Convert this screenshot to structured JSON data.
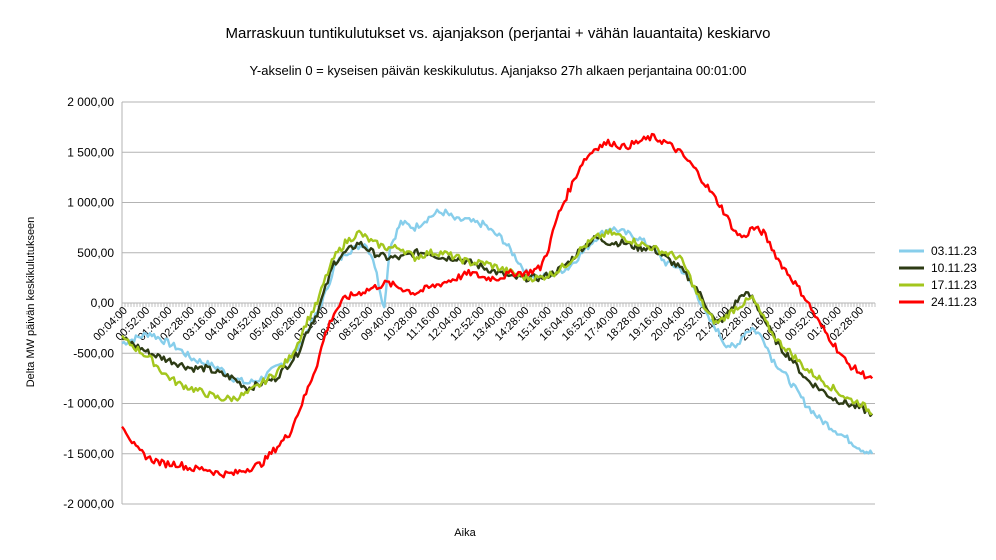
{
  "chart_data": {
    "type": "line",
    "title": "Marraskuun tuntikulutukset vs. ajanjakson (perjantai + vähän lauantaita) keskiarvo",
    "subtitle": "Y-akselin 0 = kyseisen päivän keskikulutus. Ajanjakso 27h alkaen perjantaina 00:01:00",
    "xlabel": "Aika",
    "ylabel": "Delta MW päivän keskikulutukseen",
    "ylim": [
      -2000,
      2000
    ],
    "yticks": [
      2000,
      1500,
      1000,
      500,
      0,
      -500,
      -1000,
      -1500,
      -2000
    ],
    "ytick_labels": [
      "2 000,00",
      "1 500,00",
      "1 000,00",
      "500,00",
      "0,00",
      "-500,00",
      "-1 000,00",
      "-1 500,00",
      "-2 000,00"
    ],
    "x_hours_range": [
      0,
      27
    ],
    "xtick_labels": [
      "00:04:00",
      "00:52:00",
      "01:40:00",
      "02:28:00",
      "03:16:00",
      "04:04:00",
      "04:52:00",
      "05:40:00",
      "06:28:00",
      "07:16:00",
      "08:04:00",
      "08:52:00",
      "09:40:00",
      "10:28:00",
      "11:16:00",
      "12:04:00",
      "12:52:00",
      "13:40:00",
      "14:28:00",
      "15:16:00",
      "16:04:00",
      "16:52:00",
      "17:40:00",
      "18:28:00",
      "19:16:00",
      "20:04:00",
      "20:52:00",
      "21:40:00",
      "22:28:00",
      "23:16:00",
      "00:04:00",
      "00:52:00",
      "01:40:00",
      "02:28:00"
    ],
    "grid": "horizontal",
    "legend_position": "right",
    "series": [
      {
        "name": "03.11.23",
        "color": "#87ceeb",
        "x": [
          0,
          1,
          2,
          2.5,
          3,
          3.5,
          4,
          4.5,
          5,
          5.5,
          6,
          6.3,
          6.6,
          7,
          7.3,
          7.6,
          8,
          8.4,
          8.7,
          9,
          9.2,
          9.4,
          9.6,
          10,
          10.5,
          11,
          11.3,
          11.6,
          12,
          12.3,
          12.6,
          13,
          13.3,
          13.6,
          14,
          14.5,
          15,
          15.5,
          16,
          16.5,
          17,
          17.5,
          18,
          18.5,
          19,
          19.5,
          20,
          20.3,
          20.6,
          21,
          21.3,
          21.6,
          22,
          22.3,
          22.6,
          23,
          23.3,
          23.6,
          24,
          24.5,
          25,
          25.5,
          26,
          26.5,
          26.9
        ],
        "y": [
          -400,
          -300,
          -450,
          -550,
          -600,
          -650,
          -750,
          -800,
          -750,
          -650,
          -550,
          -450,
          -300,
          -100,
          100,
          350,
          500,
          550,
          600,
          450,
          200,
          -50,
          550,
          800,
          750,
          850,
          900,
          900,
          820,
          830,
          800,
          780,
          700,
          650,
          500,
          300,
          250,
          300,
          350,
          500,
          650,
          750,
          700,
          650,
          550,
          400,
          350,
          250,
          100,
          -150,
          -250,
          -400,
          -450,
          -300,
          -250,
          -350,
          -550,
          -650,
          -800,
          -1000,
          -1150,
          -1250,
          -1350,
          -1450,
          -1500
        ]
      },
      {
        "name": "10.11.23",
        "color": "#2d3b14",
        "x": [
          0,
          1,
          2,
          2.5,
          3,
          3.5,
          4,
          4.5,
          5,
          5.5,
          6,
          6.3,
          6.6,
          7,
          7.3,
          7.6,
          8,
          8.5,
          9,
          9.5,
          10,
          10.5,
          11,
          11.5,
          12,
          12.5,
          13,
          13.5,
          14,
          14.5,
          15,
          15.5,
          16,
          16.5,
          17,
          17.5,
          18,
          18.5,
          19,
          19.5,
          20,
          20.3,
          20.6,
          21,
          21.3,
          21.6,
          22,
          22.3,
          22.6,
          23,
          23.3,
          23.6,
          24,
          24.5,
          25,
          25.5,
          26,
          26.5,
          26.9
        ],
        "y": [
          -350,
          -500,
          -600,
          -650,
          -650,
          -700,
          -750,
          -850,
          -800,
          -750,
          -600,
          -500,
          -300,
          -100,
          150,
          400,
          500,
          600,
          500,
          450,
          450,
          500,
          500,
          450,
          450,
          400,
          350,
          300,
          250,
          250,
          250,
          300,
          400,
          550,
          650,
          600,
          600,
          550,
          550,
          450,
          350,
          250,
          150,
          -50,
          -200,
          -150,
          0,
          100,
          50,
          -150,
          -300,
          -450,
          -550,
          -750,
          -850,
          -950,
          -1000,
          -1050,
          -1100
        ]
      },
      {
        "name": "17.11.23",
        "color": "#a3c61d",
        "x": [
          0,
          1,
          1.5,
          2,
          2.5,
          3,
          3.5,
          4,
          4.5,
          5,
          5.5,
          6,
          6.3,
          6.6,
          7,
          7.3,
          7.6,
          8,
          8.5,
          9,
          9.5,
          10,
          10.5,
          11,
          11.5,
          12,
          12.5,
          13,
          13.5,
          14,
          14.5,
          15,
          15.5,
          16,
          16.5,
          17,
          17.5,
          18,
          18.5,
          19,
          19.5,
          20,
          20.3,
          20.6,
          21,
          21.3,
          21.6,
          22,
          22.3,
          22.6,
          23,
          23.3,
          23.6,
          24,
          24.5,
          25,
          25.5,
          26,
          26.5,
          26.9
        ],
        "y": [
          -350,
          -550,
          -700,
          -800,
          -850,
          -900,
          -950,
          -950,
          -900,
          -800,
          -700,
          -550,
          -400,
          -200,
          0,
          250,
          450,
          600,
          700,
          600,
          550,
          550,
          450,
          500,
          500,
          450,
          400,
          400,
          350,
          300,
          250,
          250,
          300,
          400,
          550,
          650,
          700,
          650,
          600,
          550,
          500,
          450,
          300,
          100,
          -100,
          -200,
          -150,
          -50,
          0,
          50,
          -150,
          -300,
          -400,
          -500,
          -650,
          -750,
          -850,
          -950,
          -1000,
          -1100
        ]
      },
      {
        "name": "24.11.23",
        "color": "#ff0000",
        "x": [
          0,
          0.5,
          1,
          1.5,
          2,
          2.5,
          3,
          3.5,
          4,
          4.5,
          5,
          5.5,
          6,
          6.3,
          6.6,
          7,
          7.3,
          7.6,
          8,
          8.5,
          9,
          9.5,
          10,
          10.5,
          11,
          11.5,
          12,
          12.5,
          13,
          13.5,
          14,
          14.5,
          15,
          15.3,
          15.6,
          16,
          16.5,
          17,
          17.5,
          18,
          18.5,
          19,
          19.5,
          20,
          20.5,
          21,
          21.5,
          22,
          22.3,
          22.6,
          23,
          23.3,
          23.6,
          24,
          24.5,
          25,
          25.5,
          26,
          26.5,
          26.9
        ],
        "y": [
          -1200,
          -1450,
          -1550,
          -1600,
          -1600,
          -1650,
          -1650,
          -1700,
          -1700,
          -1650,
          -1600,
          -1450,
          -1300,
          -1100,
          -900,
          -600,
          -300,
          -100,
          50,
          100,
          150,
          200,
          150,
          100,
          150,
          200,
          250,
          300,
          250,
          250,
          300,
          300,
          350,
          550,
          850,
          1100,
          1400,
          1550,
          1600,
          1550,
          1600,
          1650,
          1600,
          1500,
          1350,
          1150,
          950,
          700,
          650,
          750,
          700,
          550,
          400,
          250,
          50,
          -200,
          -400,
          -600,
          -700,
          -750
        ]
      }
    ]
  }
}
